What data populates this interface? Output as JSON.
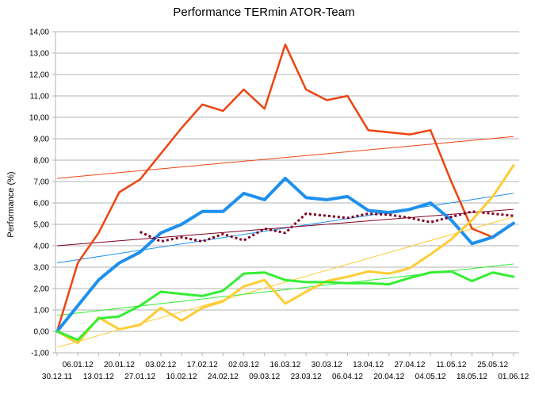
{
  "chart_data": {
    "type": "line",
    "title": "Performance TERmin ATOR-Team",
    "xlabel": "",
    "ylabel": "Performance (%)",
    "ylim": [
      -1,
      14
    ],
    "yticks": [
      "-1,00",
      "0,00",
      "1,00",
      "2,00",
      "3,00",
      "4,00",
      "5,00",
      "6,00",
      "7,00",
      "8,00",
      "9,00",
      "10,00",
      "11,00",
      "12,00",
      "13,00",
      "14,00"
    ],
    "categories": [
      "30.12.11",
      "06.01.12",
      "13.01.12",
      "20.01.12",
      "27.01.12",
      "03.02.12",
      "10.02.12",
      "17.02.12",
      "24.02.12",
      "02.03.12",
      "09.03.12",
      "16.03.12",
      "23.03.12",
      "30.03.12",
      "06.04.12",
      "13.04.12",
      "20.04.12",
      "27.04.12",
      "04.05.12",
      "11.05.12",
      "18.05.12",
      "25.05.12",
      "01.06.12"
    ],
    "grid": true,
    "series": [
      {
        "color": "#ee4411",
        "width": 2.5,
        "dash": "",
        "values": [
          0,
          3.2,
          4.6,
          6.5,
          7.1,
          8.3,
          9.5,
          10.6,
          10.3,
          11.3,
          10.4,
          13.4,
          11.3,
          10.8,
          11.0,
          9.4,
          9.3,
          9.2,
          9.4,
          7.0,
          4.8,
          4.4,
          null
        ]
      },
      {
        "color": "#1e90ee",
        "width": 4,
        "dash": "",
        "values": [
          0,
          1.2,
          2.4,
          3.2,
          3.7,
          4.6,
          5.0,
          5.6,
          5.6,
          6.45,
          6.15,
          7.15,
          6.25,
          6.15,
          6.3,
          5.65,
          5.55,
          5.7,
          6.0,
          5.2,
          4.1,
          4.4,
          5.05
        ]
      },
      {
        "color": "#800020",
        "width": 3,
        "dash": "3,3",
        "values": [
          null,
          null,
          null,
          null,
          4.65,
          4.2,
          4.4,
          4.2,
          4.55,
          4.25,
          4.8,
          4.6,
          5.5,
          5.4,
          5.3,
          5.5,
          5.45,
          5.3,
          5.1,
          5.35,
          5.6,
          5.5,
          5.4
        ]
      },
      {
        "color": "#ffcc33",
        "width": 3,
        "dash": "",
        "values": [
          0,
          -0.55,
          0.65,
          0.1,
          0.3,
          1.1,
          0.5,
          1.1,
          1.4,
          2.1,
          2.4,
          1.3,
          1.85,
          2.35,
          2.55,
          2.8,
          2.7,
          2.95,
          3.6,
          4.3,
          5.2,
          6.3,
          7.75
        ]
      },
      {
        "color": "#33ee33",
        "width": 3,
        "dash": "",
        "values": [
          0,
          -0.4,
          0.6,
          0.7,
          1.2,
          1.85,
          1.75,
          1.65,
          1.9,
          2.7,
          2.75,
          2.4,
          2.3,
          2.3,
          2.25,
          2.25,
          2.2,
          2.5,
          2.75,
          2.8,
          2.35,
          2.75,
          2.55
        ]
      }
    ],
    "trendlines": [
      {
        "color": "#ee4411",
        "from": [
          0,
          7.15
        ],
        "to": [
          22,
          9.1
        ]
      },
      {
        "color": "#1e90ee",
        "from": [
          0,
          3.2
        ],
        "to": [
          22,
          6.45
        ]
      },
      {
        "color": "#800020",
        "from": [
          0,
          4.0
        ],
        "to": [
          22,
          5.7
        ]
      },
      {
        "color": "#ffcc33",
        "from": [
          0,
          -0.75
        ],
        "to": [
          22,
          5.35
        ]
      },
      {
        "color": "#33ee33",
        "from": [
          0,
          0.75
        ],
        "to": [
          22,
          3.15
        ]
      }
    ]
  }
}
